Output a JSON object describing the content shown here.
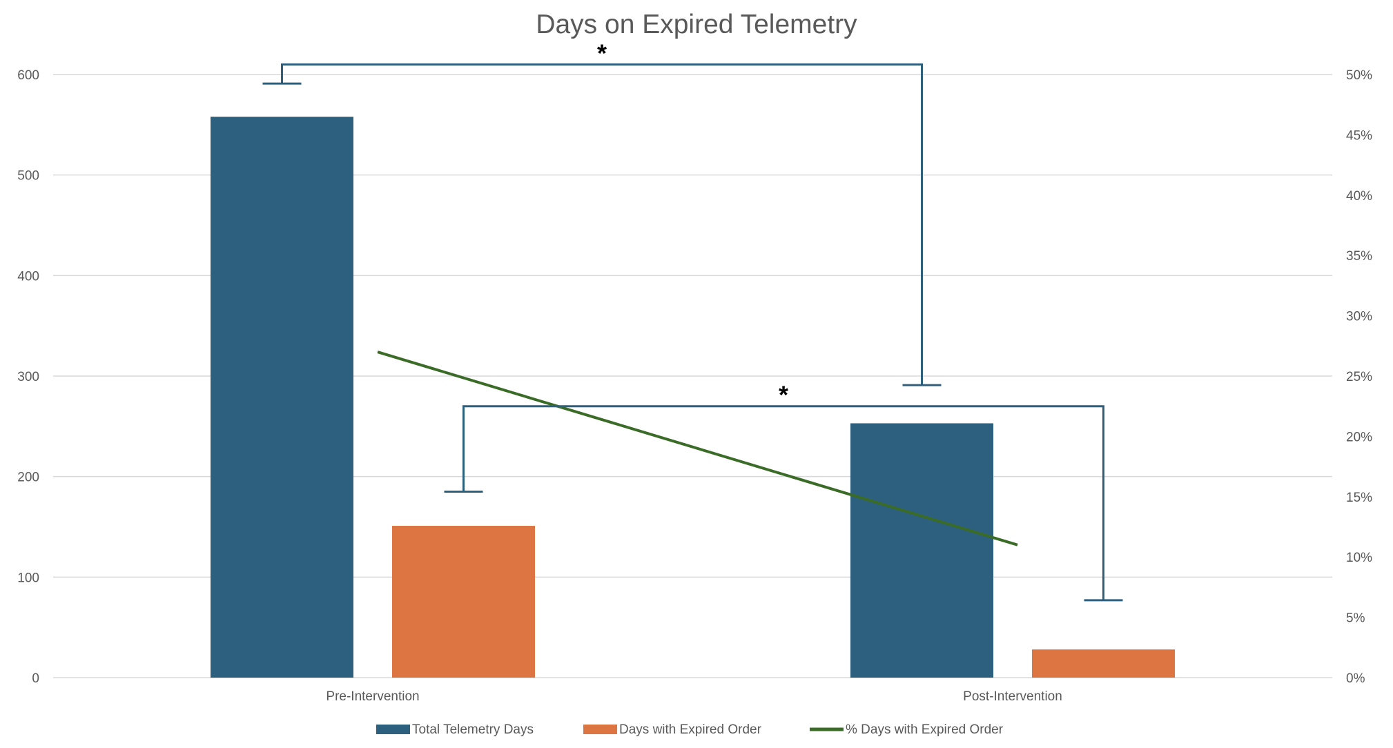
{
  "chart_data": {
    "type": "bar",
    "title": "Days on Expired Telemetry",
    "categories": [
      "Pre-Intervention",
      "Post-Intervention"
    ],
    "series": [
      {
        "name": "Total Telemetry Days",
        "values": [
          558,
          253
        ],
        "axis": "left",
        "kind": "bar",
        "color": "#2d5f7f"
      },
      {
        "name": "Days with Expired Order",
        "values": [
          151,
          28
        ],
        "axis": "left",
        "kind": "bar",
        "color": "#dc7542"
      },
      {
        "name": "% Days with Expired Order",
        "values": [
          27,
          11
        ],
        "axis": "right",
        "kind": "line",
        "unit": "%",
        "color": "#3a6b27"
      }
    ],
    "y_left": {
      "min": 0,
      "max": 600,
      "ticks": [
        "0",
        "100",
        "200",
        "300",
        "400",
        "500",
        "600"
      ]
    },
    "y_right": {
      "min": 0,
      "max": 50,
      "ticks": [
        "0%",
        "5%",
        "10%",
        "15%",
        "20%",
        "25%",
        "30%",
        "35%",
        "40%",
        "45%",
        "50%"
      ]
    },
    "grid": true,
    "legend_position": "bottom",
    "significance": [
      {
        "label": "*",
        "series": "Total Telemetry Days",
        "left_value": 591,
        "right_value": 291,
        "bracket_value": 610
      },
      {
        "label": "*",
        "series": "Days with Expired Order",
        "left_value": 185,
        "right_value": 77,
        "bracket_value": 270
      }
    ]
  }
}
